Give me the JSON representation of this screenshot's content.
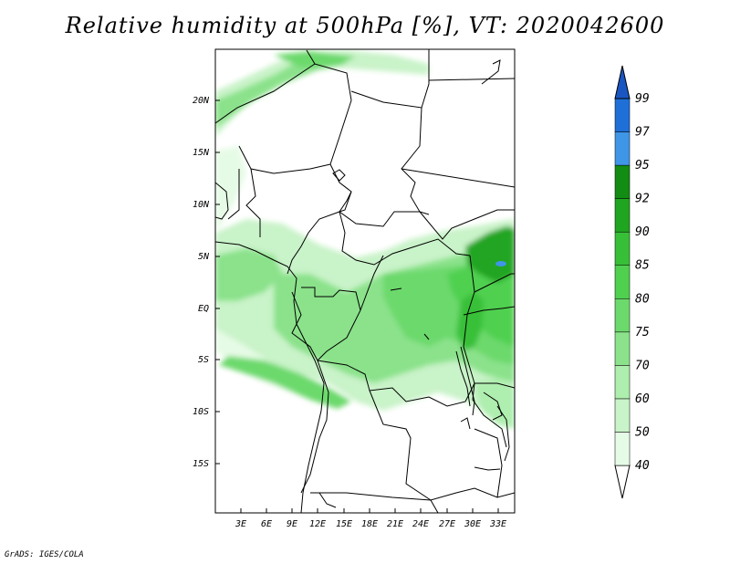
{
  "title": "Relative humidity at 500hPa [%], VT: 2020042600",
  "credit": "GrADS: IGES/COLA",
  "map": {
    "lat_labels": [
      "20N",
      "15N",
      "10N",
      "5N",
      "EQ",
      "5S",
      "10S",
      "15S"
    ],
    "lon_labels": [
      "3E",
      "6E",
      "9E",
      "12E",
      "15E",
      "18E",
      "21E",
      "24E",
      "27E",
      "30E",
      "33E"
    ]
  },
  "colorbar": {
    "levels": [
      "40",
      "50",
      "60",
      "70",
      "75",
      "80",
      "85",
      "90",
      "92",
      "95",
      "97",
      "99"
    ],
    "colors": [
      "#ffffff",
      "#e6fbe6",
      "#c9f3c9",
      "#aeeeae",
      "#8be28b",
      "#6cd96c",
      "#4fd04f",
      "#37c037",
      "#20a520",
      "#128c12",
      "#3f95e6",
      "#1f6fd8",
      "#1a56c2"
    ]
  }
}
